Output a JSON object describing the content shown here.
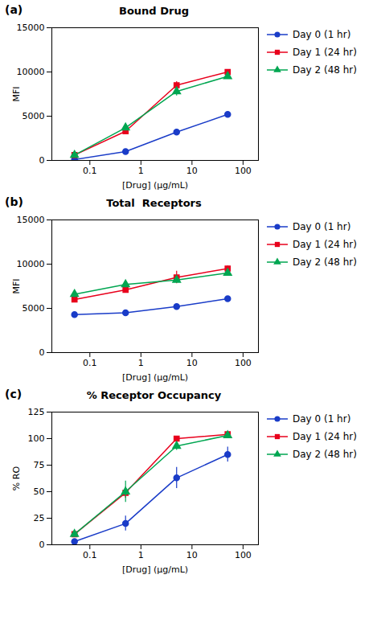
{
  "chart_data": [
    {
      "type": "line",
      "title": "Bound Drug",
      "annotations": [
        "(a)"
      ],
      "xlabel": "[Drug] (µg/mL)",
      "ylabel": "MFI",
      "x": [
        0.05,
        0.5,
        5,
        50
      ],
      "series": [
        {
          "name": "Day 0 (1 hr)",
          "color": "#1a3cc8",
          "marker": "circle",
          "values": [
            100,
            1000,
            3200,
            5200
          ],
          "yerr": [
            80,
            150,
            200,
            250
          ]
        },
        {
          "name": "Day 1 (24 hr)",
          "color": "#e8001c",
          "marker": "square",
          "values": [
            600,
            3300,
            8500,
            10000
          ],
          "yerr": [
            50,
            200,
            400,
            200
          ]
        },
        {
          "name": "Day 2 (48 hr)",
          "color": "#00a651",
          "marker": "triangle",
          "values": [
            600,
            3700,
            7800,
            9500
          ],
          "yerr": [
            50,
            150,
            500,
            250
          ]
        }
      ],
      "log": "x",
      "xlim": [
        0.018,
        200
      ],
      "xticks": [
        0.1,
        1,
        10,
        100
      ],
      "ylim": [
        0,
        15000
      ],
      "yticks": [
        0,
        5000,
        10000,
        15000
      ],
      "legend": "right"
    },
    {
      "type": "line",
      "title": "Total  Receptors",
      "annotations": [
        "(b)"
      ],
      "xlabel": "[Drug] (µg/mL)",
      "ylabel": "MFI",
      "x": [
        0.05,
        0.5,
        5,
        50
      ],
      "series": [
        {
          "name": "Day 0 (1 hr)",
          "color": "#1a3cc8",
          "marker": "circle",
          "values": [
            4300,
            4500,
            5200,
            6100
          ],
          "yerr": [
            250,
            200,
            200,
            150
          ]
        },
        {
          "name": "Day 1 (24 hr)",
          "color": "#e8001c",
          "marker": "square",
          "values": [
            6000,
            7100,
            8500,
            9500
          ],
          "yerr": [
            300,
            300,
            700,
            300
          ]
        },
        {
          "name": "Day 2 (48 hr)",
          "color": "#00a651",
          "marker": "triangle",
          "values": [
            6600,
            7700,
            8200,
            9000
          ],
          "yerr": [
            400,
            350,
            300,
            250
          ]
        }
      ],
      "log": "x",
      "xlim": [
        0.018,
        200
      ],
      "xticks": [
        0.1,
        1,
        10,
        100
      ],
      "ylim": [
        0,
        15000
      ],
      "yticks": [
        0,
        5000,
        10000,
        15000
      ],
      "legend": "right"
    },
    {
      "type": "line",
      "title": "% Receptor Occupancy",
      "annotations": [
        "(c)"
      ],
      "xlabel": "[Drug] (µg/mL)",
      "ylabel": "% RO",
      "x": [
        0.05,
        0.5,
        5,
        50
      ],
      "series": [
        {
          "name": "Day 0 (1 hr)",
          "color": "#1a3cc8",
          "marker": "circle",
          "values": [
            3,
            20,
            63,
            85
          ],
          "yerr": [
            2,
            7,
            10,
            7
          ]
        },
        {
          "name": "Day 1 (24 hr)",
          "color": "#e8001c",
          "marker": "square",
          "values": [
            10,
            49,
            100,
            104
          ],
          "yerr": [
            2,
            5,
            2,
            2
          ]
        },
        {
          "name": "Day 2 (48 hr)",
          "color": "#00a651",
          "marker": "triangle",
          "values": [
            10,
            50,
            93,
            103
          ],
          "yerr": [
            2,
            10,
            4,
            3
          ]
        }
      ],
      "log": "x",
      "xlim": [
        0.018,
        200
      ],
      "xticks": [
        0.1,
        1,
        10,
        100
      ],
      "ylim": [
        0,
        125
      ],
      "yticks": [
        0,
        25,
        50,
        75,
        100,
        125
      ],
      "legend": "right"
    }
  ]
}
